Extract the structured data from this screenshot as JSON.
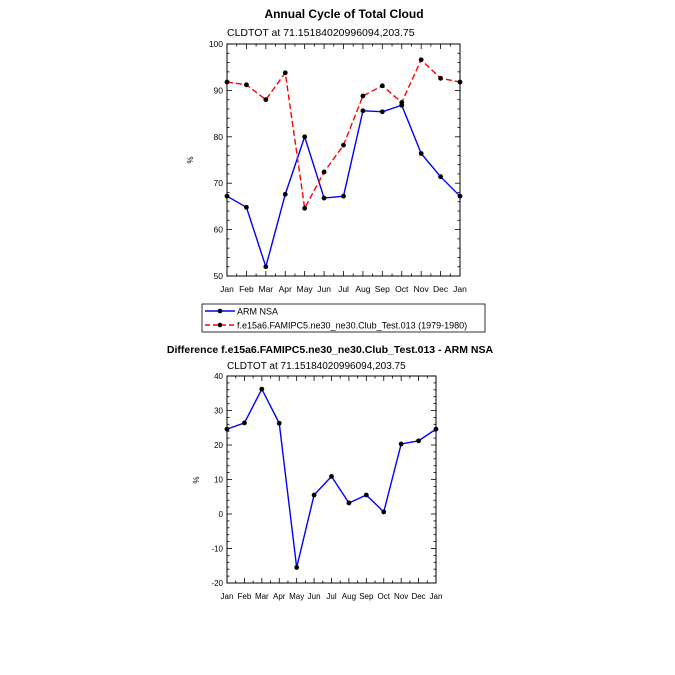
{
  "chart_data": [
    {
      "type": "line",
      "title": "Annual Cycle of Total Cloud",
      "subtitle": "CLDTOT at 71.15184020996094,203.75",
      "xlabel": "",
      "ylabel": "%",
      "categories": [
        "Jan",
        "Feb",
        "Mar",
        "Apr",
        "May",
        "Jun",
        "Jul",
        "Aug",
        "Sep",
        "Oct",
        "Nov",
        "Dec",
        "Jan"
      ],
      "ylim": [
        50,
        100
      ],
      "yticks": [
        50,
        60,
        70,
        80,
        90,
        100
      ],
      "grid": false,
      "legend_position": "below",
      "series": [
        {
          "name": "ARM NSA",
          "color": "#0000ff",
          "dash": "solid",
          "values": [
            67.2,
            64.8,
            52.0,
            67.6,
            80.0,
            66.8,
            67.2,
            85.6,
            85.4,
            86.8,
            76.4,
            71.4,
            67.2
          ]
        },
        {
          "name": "f.e15a6.FAMIPC5.ne30_ne30.Club_Test.013 (1979-1980)",
          "color": "#ff0000",
          "dash": "dashed",
          "values": [
            91.8,
            91.2,
            88.0,
            93.8,
            64.6,
            72.4,
            78.2,
            88.8,
            91.0,
            87.4,
            96.6,
            92.6,
            91.8
          ]
        }
      ]
    },
    {
      "type": "line",
      "title": "Difference f.e15a6.FAMIPC5.ne30_ne30.Club_Test.013 - ARM NSA",
      "subtitle": "CLDTOT at 71.15184020996094,203.75",
      "xlabel": "",
      "ylabel": "%",
      "categories": [
        "Jan",
        "Feb",
        "Mar",
        "Apr",
        "May",
        "Jun",
        "Jul",
        "Aug",
        "Sep",
        "Oct",
        "Nov",
        "Dec",
        "Jan"
      ],
      "ylim": [
        -20,
        40
      ],
      "yticks": [
        -20,
        -10,
        0,
        10,
        20,
        30,
        40
      ],
      "grid": false,
      "series": [
        {
          "name": "Difference",
          "color": "#0000ff",
          "dash": "solid",
          "values": [
            24.6,
            26.4,
            36.2,
            26.3,
            -15.5,
            5.5,
            10.9,
            3.2,
            5.5,
            0.6,
            20.3,
            21.2,
            24.6
          ]
        }
      ]
    }
  ]
}
